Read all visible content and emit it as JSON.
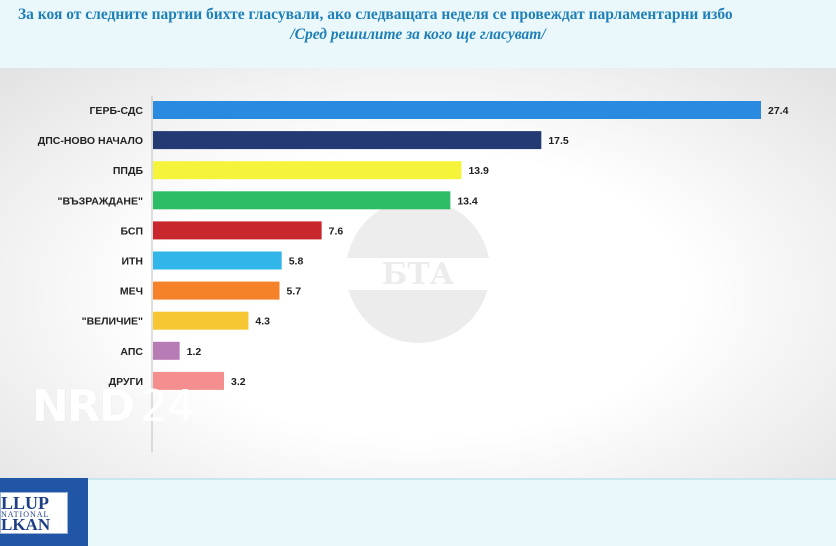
{
  "header": {
    "line1": "За коя от следните партии бихте  гласували,  ако следващата неделя се провеждат парламентарни избо",
    "line2": "/Сред решилите за кого ще гласуват/"
  },
  "logo": {
    "line1": "LLUP",
    "line2": "NATIONAL",
    "line3": "LKAN"
  },
  "watermark": {
    "bta": "БТА",
    "nrd": "NRD",
    "nrd_num": "24"
  },
  "chart_data": {
    "type": "bar",
    "orientation": "horizontal",
    "title": "За коя от следните партии бихте  гласували,  ако следващата неделя се провеждат парламентарни избо",
    "subtitle": "/Сред решилите за кого ще гласуват/",
    "categories": [
      "ГЕРБ-СДС",
      "ДПС-НОВО НАЧАЛО",
      "ППДБ",
      "\"ВЪЗРАЖДАНЕ\"",
      "БСП",
      "ИТН",
      "МЕЧ",
      "\"ВЕЛИЧИЕ\"",
      "АПС",
      "ДРУГИ"
    ],
    "values": [
      27.4,
      17.5,
      13.9,
      13.4,
      7.6,
      5.8,
      5.7,
      4.3,
      1.2,
      3.2
    ],
    "value_labels": [
      "27.4",
      "17.5",
      "13.9",
      "13.4",
      "7.6",
      "5.8",
      "5.7",
      "4.3",
      "1.2",
      "3.2"
    ],
    "colors": [
      "#2a8ae0",
      "#243a73",
      "#f6f43a",
      "#2dbd67",
      "#c8282d",
      "#32b6ea",
      "#f58229",
      "#f7c633",
      "#b77bb6",
      "#f58f8f"
    ],
    "xlim": [
      0,
      27.4
    ],
    "grid": false,
    "xlabel": "",
    "ylabel": ""
  }
}
